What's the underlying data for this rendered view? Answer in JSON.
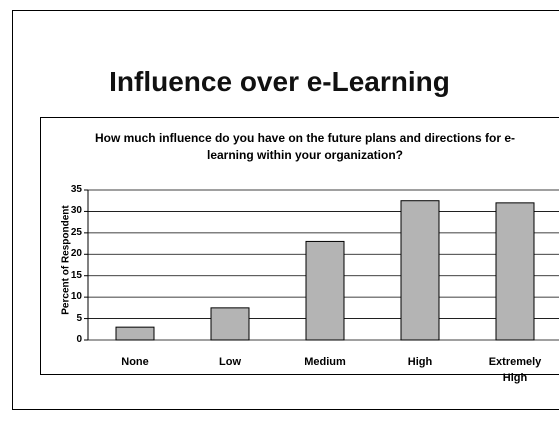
{
  "slide_title": "Influence over e-Learning",
  "chart_data": {
    "type": "bar",
    "title": "How much influence do you have on the future plans and directions for e-learning within your organization?",
    "y_label": "Percent of Respondent",
    "categories": [
      "None",
      "Low",
      "Medium",
      "High",
      "Extremely High"
    ],
    "values": [
      3,
      7.5,
      23,
      32.5,
      32
    ],
    "color": "#b4b4b4",
    "ylim": [
      0,
      35
    ],
    "yticks": [
      0,
      5,
      10,
      15,
      20,
      25,
      30,
      35
    ],
    "grid": true
  }
}
